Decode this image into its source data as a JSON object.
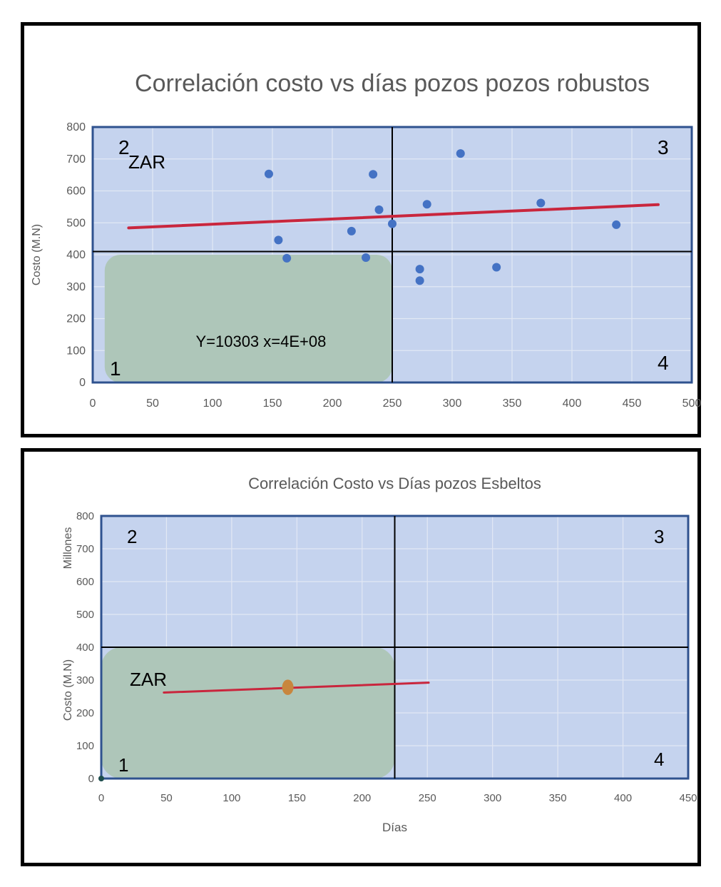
{
  "chart_data": [
    {
      "type": "scatter",
      "title": "Correlación costo vs días pozos pozos robustos",
      "xlabel": "",
      "ylabel": "Costo (M.N)",
      "xlim": [
        0,
        500
      ],
      "ylim": [
        0,
        800
      ],
      "x_ticks": [
        "0",
        "50",
        "100",
        "150",
        "200",
        "250",
        "300",
        "350",
        "400",
        "450",
        "500"
      ],
      "y_ticks": [
        "0",
        "100",
        "200",
        "300",
        "400",
        "500",
        "600",
        "700",
        "800"
      ],
      "grid": true,
      "plot_bg": "#c5d3ee",
      "zone_color": "#aec6b9",
      "point_color": "#4472c4",
      "trend_color": "#c9263d",
      "points": [
        {
          "x": 147,
          "y": 653
        },
        {
          "x": 155,
          "y": 446
        },
        {
          "x": 162,
          "y": 389
        },
        {
          "x": 216,
          "y": 474
        },
        {
          "x": 228,
          "y": 391
        },
        {
          "x": 234,
          "y": 652
        },
        {
          "x": 239,
          "y": 541
        },
        {
          "x": 250,
          "y": 497
        },
        {
          "x": 273,
          "y": 355
        },
        {
          "x": 273,
          "y": 319
        },
        {
          "x": 279,
          "y": 558
        },
        {
          "x": 307,
          "y": 717
        },
        {
          "x": 337,
          "y": 361
        },
        {
          "x": 374,
          "y": 562
        },
        {
          "x": 437,
          "y": 494
        }
      ],
      "trendline": {
        "x": [
          30,
          472
        ],
        "y": [
          484,
          557
        ]
      },
      "divider": {
        "x": 250,
        "y": 410
      },
      "zone": {
        "x": [
          10,
          250
        ],
        "y": [
          0,
          400
        ]
      },
      "zone_label": "ZAR",
      "equation": "Y=10303  x=4E+08",
      "quadrants": [
        "2",
        "3",
        "1",
        "4"
      ]
    },
    {
      "type": "scatter",
      "title": "Correlación Costo vs Días pozos Esbeltos",
      "xlabel": "Días",
      "ylabel": "Costo (M.N)",
      "y_unit": "Millones",
      "xlim": [
        0,
        450
      ],
      "ylim": [
        0,
        800
      ],
      "x_ticks": [
        "0",
        "50",
        "100",
        "150",
        "200",
        "250",
        "300",
        "350",
        "400",
        "450"
      ],
      "y_ticks": [
        "0",
        "100",
        "200",
        "300",
        "400",
        "500",
        "600",
        "700",
        "800"
      ],
      "grid": true,
      "plot_bg": "#c5d3ee",
      "zone_color": "#aec6b9",
      "point_color": "#c8863e",
      "origin_point_color": "#1d4d4d",
      "trend_color": "#c9263d",
      "points": [
        {
          "x": 143,
          "y": 278
        },
        {
          "x": 0,
          "y": 0
        }
      ],
      "trendline": {
        "x": [
          48,
          251
        ],
        "y": [
          262,
          292
        ]
      },
      "divider": {
        "x": 225,
        "y": 400
      },
      "zone": {
        "x": [
          0,
          225
        ],
        "y": [
          0,
          400
        ]
      },
      "zone_label": "ZAR",
      "quadrants": [
        "2",
        "3",
        "1",
        "4"
      ]
    }
  ]
}
